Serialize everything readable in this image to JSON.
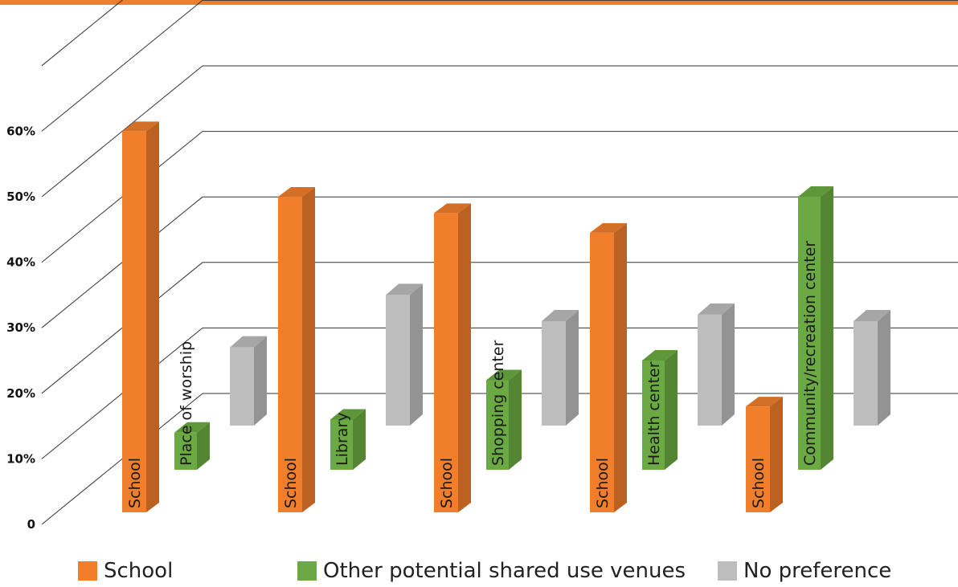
{
  "colors": {
    "accent": "#F07E2B",
    "school": "#F07E2B",
    "other": "#6BAA42",
    "none": "#BDBDBD"
  },
  "legend": {
    "school": "School",
    "other": "Other potential shared use venues",
    "none": "No preference"
  },
  "chart_data": {
    "type": "bar",
    "title": "",
    "xlabel": "",
    "ylabel": "",
    "ylim": [
      0,
      60
    ],
    "y_ticks": [
      "0",
      "10%",
      "20%",
      "30%",
      "40%",
      "50%",
      "60%"
    ],
    "grid": true,
    "legend_position": "bottom",
    "groups": [
      {
        "bars": [
          {
            "series": "school",
            "label": "School",
            "value": 60
          },
          {
            "series": "other",
            "label": "Place of worship",
            "value": 14
          },
          {
            "series": "none",
            "label": "",
            "value": 27
          }
        ]
      },
      {
        "bars": [
          {
            "series": "school",
            "label": "School",
            "value": 50
          },
          {
            "series": "other",
            "label": "Library",
            "value": 16
          },
          {
            "series": "none",
            "label": "",
            "value": 35
          }
        ]
      },
      {
        "bars": [
          {
            "series": "school",
            "label": "School",
            "value": 47.5
          },
          {
            "series": "other",
            "label": "Shopping center",
            "value": 22
          },
          {
            "series": "none",
            "label": "",
            "value": 31
          }
        ]
      },
      {
        "bars": [
          {
            "series": "school",
            "label": "School",
            "value": 44.5
          },
          {
            "series": "other",
            "label": "Health center",
            "value": 25
          },
          {
            "series": "none",
            "label": "",
            "value": 32
          }
        ]
      },
      {
        "bars": [
          {
            "series": "school",
            "label": "School",
            "value": 18
          },
          {
            "series": "other",
            "label": "Community/recreation center",
            "value": 50
          },
          {
            "series": "none",
            "label": "",
            "value": 31
          }
        ]
      }
    ]
  }
}
